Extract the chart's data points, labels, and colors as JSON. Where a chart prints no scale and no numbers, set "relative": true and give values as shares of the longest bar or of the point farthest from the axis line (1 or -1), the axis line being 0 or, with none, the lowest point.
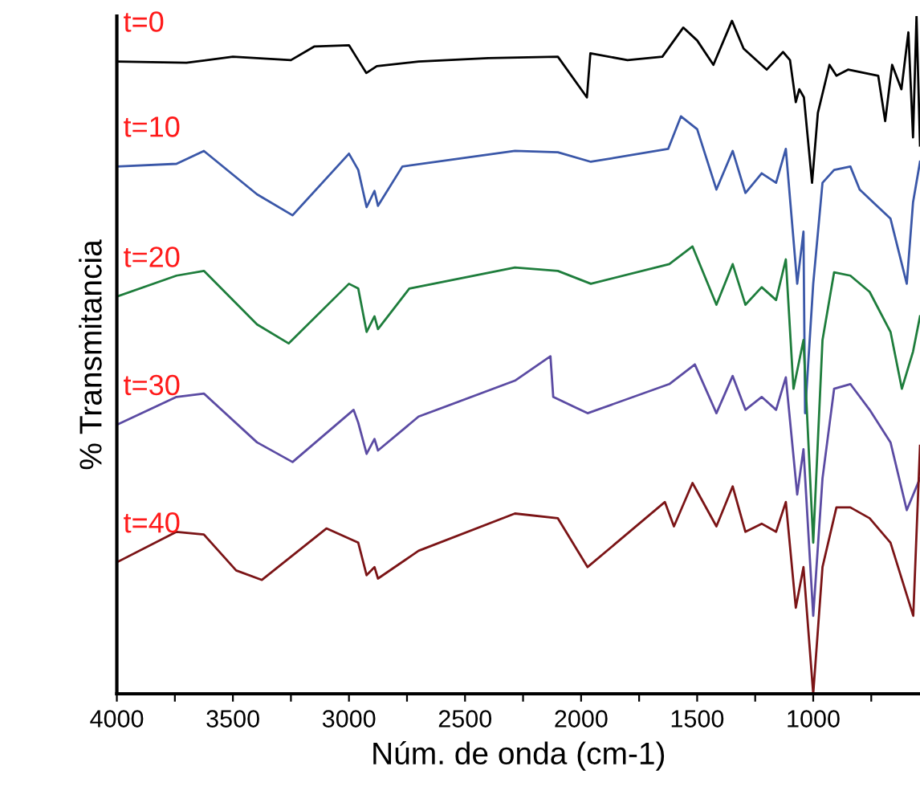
{
  "chart_data": {
    "type": "line",
    "xlabel": "Núm. de onda (cm-1)",
    "ylabel": "% Transmitancia",
    "relative": true,
    "legend": false,
    "grid": false,
    "marker": "none",
    "line_style": "solid",
    "xlim": [
      4000,
      540
    ],
    "xticks": [
      4000,
      {
        "value": 3750,
        "label": null
      },
      3500,
      {
        "value": 3250,
        "label": null
      },
      3000,
      {
        "value": 2750,
        "label": null
      },
      2500,
      {
        "value": 2250,
        "label": null
      },
      2000,
      {
        "value": 1750,
        "label": null
      },
      1500,
      {
        "value": 1250,
        "label": null
      },
      1000,
      {
        "value": 750,
        "label": null
      }
    ],
    "series": [
      {
        "name": "t=0",
        "color": "#000000",
        "x": [
          4000,
          3700,
          3500,
          3250,
          3150,
          3000,
          2960,
          2925,
          2880,
          2700,
          2400,
          2100,
          1975,
          1960,
          1800,
          1650,
          1560,
          1500,
          1430,
          1350,
          1300,
          1200,
          1130,
          1100,
          1075,
          1060,
          1040,
          1005,
          980,
          930,
          900,
          850,
          720,
          690,
          660,
          620,
          590,
          570,
          555,
          540
        ],
        "values": [
          0.933,
          0.931,
          0.94,
          0.935,
          0.955,
          0.957,
          0.935,
          0.916,
          0.926,
          0.933,
          0.938,
          0.94,
          0.88,
          0.945,
          0.935,
          0.94,
          0.983,
          0.964,
          0.928,
          0.993,
          0.952,
          0.921,
          0.947,
          0.935,
          0.873,
          0.892,
          0.88,
          0.754,
          0.857,
          0.928,
          0.912,
          0.921,
          0.912,
          0.845,
          0.928,
          0.892,
          0.976,
          0.821,
          1.0,
          0.809
        ]
      },
      {
        "name": "t=10",
        "color": "#3a57a8",
        "x": [
          4000,
          3743,
          3625,
          3396,
          3243,
          3000,
          2960,
          2924,
          2890,
          2875,
          2770,
          2285,
          2100,
          1958,
          1625,
          1570,
          1500,
          1417,
          1347,
          1292,
          1222,
          1160,
          1118,
          1069,
          1042,
          1035,
          1000,
          960,
          910,
          840,
          800,
          667,
          597,
          570,
          540
        ],
        "values": [
          0.778,
          0.782,
          0.801,
          0.737,
          0.706,
          0.797,
          0.773,
          0.718,
          0.742,
          0.72,
          0.778,
          0.801,
          0.799,
          0.785,
          0.804,
          0.852,
          0.833,
          0.744,
          0.801,
          0.739,
          0.768,
          0.754,
          0.804,
          0.605,
          0.682,
          0.414,
          0.605,
          0.754,
          0.773,
          0.778,
          0.744,
          0.701,
          0.605,
          0.725,
          0.785
        ]
      },
      {
        "name": "t=20",
        "color": "#1e7d3c",
        "x": [
          4000,
          3743,
          3625,
          3396,
          3260,
          3000,
          2960,
          2924,
          2890,
          2875,
          2740,
          2285,
          2100,
          1958,
          1620,
          1520,
          1417,
          1347,
          1292,
          1222,
          1160,
          1118,
          1085,
          1042,
          1000,
          960,
          910,
          840,
          757,
          667,
          618,
          570,
          540
        ],
        "values": [
          0.586,
          0.617,
          0.624,
          0.545,
          0.517,
          0.605,
          0.598,
          0.534,
          0.557,
          0.538,
          0.598,
          0.629,
          0.624,
          0.605,
          0.634,
          0.66,
          0.574,
          0.634,
          0.574,
          0.6,
          0.581,
          0.641,
          0.45,
          0.522,
          0.223,
          0.522,
          0.622,
          0.617,
          0.593,
          0.534,
          0.45,
          0.505,
          0.557
        ]
      },
      {
        "name": "t=30",
        "color": "#5b4ba3",
        "x": [
          4000,
          3743,
          3625,
          3396,
          3243,
          2980,
          2960,
          2924,
          2890,
          2875,
          2700,
          2285,
          2132,
          2120,
          1972,
          1620,
          1510,
          1417,
          1347,
          1292,
          1222,
          1160,
          1118,
          1069,
          1042,
          1000,
          960,
          910,
          840,
          757,
          667,
          597,
          540
        ],
        "values": [
          0.397,
          0.438,
          0.443,
          0.371,
          0.342,
          0.419,
          0.4,
          0.354,
          0.376,
          0.359,
          0.409,
          0.462,
          0.498,
          0.438,
          0.414,
          0.457,
          0.486,
          0.414,
          0.469,
          0.419,
          0.438,
          0.419,
          0.467,
          0.294,
          0.361,
          0.115,
          0.318,
          0.45,
          0.457,
          0.419,
          0.371,
          0.271,
          0.318
        ]
      },
      {
        "name": "t=40",
        "color": "#7b1416",
        "x": [
          4000,
          3743,
          3625,
          3486,
          3375,
          3097,
          2960,
          2924,
          2890,
          2875,
          2700,
          2285,
          2100,
          1972,
          1639,
          1600,
          1520,
          1417,
          1347,
          1292,
          1222,
          1160,
          1118,
          1075,
          1042,
          1000,
          960,
          900,
          840,
          757,
          667,
          569,
          540
        ],
        "values": [
          0.194,
          0.239,
          0.235,
          0.182,
          0.168,
          0.244,
          0.223,
          0.175,
          0.187,
          0.17,
          0.211,
          0.266,
          0.259,
          0.187,
          0.283,
          0.247,
          0.311,
          0.247,
          0.306,
          0.239,
          0.251,
          0.239,
          0.283,
          0.127,
          0.187,
          0.0,
          0.187,
          0.275,
          0.275,
          0.259,
          0.223,
          0.115,
          0.366
        ]
      }
    ]
  }
}
